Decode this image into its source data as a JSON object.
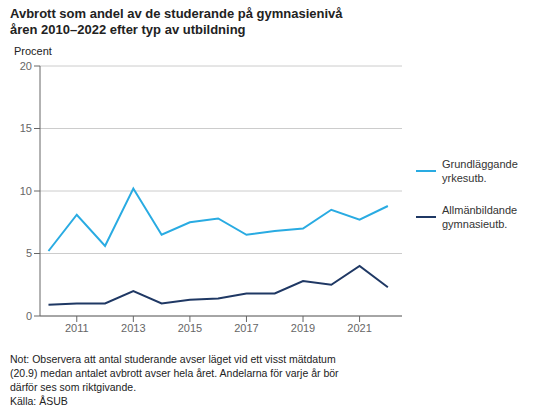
{
  "chart_data": {
    "type": "line",
    "title": "Avbrott som andel av de studerande på gymnasienivå",
    "subtitle": "åren 2010–2022 efter typ av utbildning",
    "y_label": "Procent",
    "x": [
      2010,
      2011,
      2012,
      2013,
      2014,
      2015,
      2016,
      2017,
      2018,
      2019,
      2020,
      2021,
      2022
    ],
    "series": [
      {
        "name": "Grundläggande\nyrkesutb.",
        "color": "#29ABE2",
        "values": [
          5.2,
          8.1,
          5.6,
          10.2,
          6.5,
          7.5,
          7.8,
          6.5,
          6.8,
          7.0,
          8.5,
          7.7,
          8.8
        ]
      },
      {
        "name": "Allmänbildande\ngymnasieutb.",
        "color": "#1F3864",
        "values": [
          0.9,
          1.0,
          1.0,
          2.0,
          1.0,
          1.3,
          1.4,
          1.8,
          1.8,
          2.8,
          2.5,
          4.0,
          2.3
        ]
      }
    ],
    "xlim": [
      2009.7,
      2022.5
    ],
    "xticks": [
      2011,
      2013,
      2015,
      2017,
      2019,
      2021
    ],
    "ylim": [
      0,
      20
    ],
    "yticks": [
      0,
      5,
      10,
      15,
      20
    ],
    "grid": true,
    "legend": "right",
    "annotations": [
      "Not: Observera att antal studerande avser läget vid ett visst mätdatum",
      "(20.9) medan antalet avbrott avser hela året. Andelarna för varje år bör",
      "därför ses som riktgivande.",
      "Källa: ÅSUB"
    ]
  }
}
